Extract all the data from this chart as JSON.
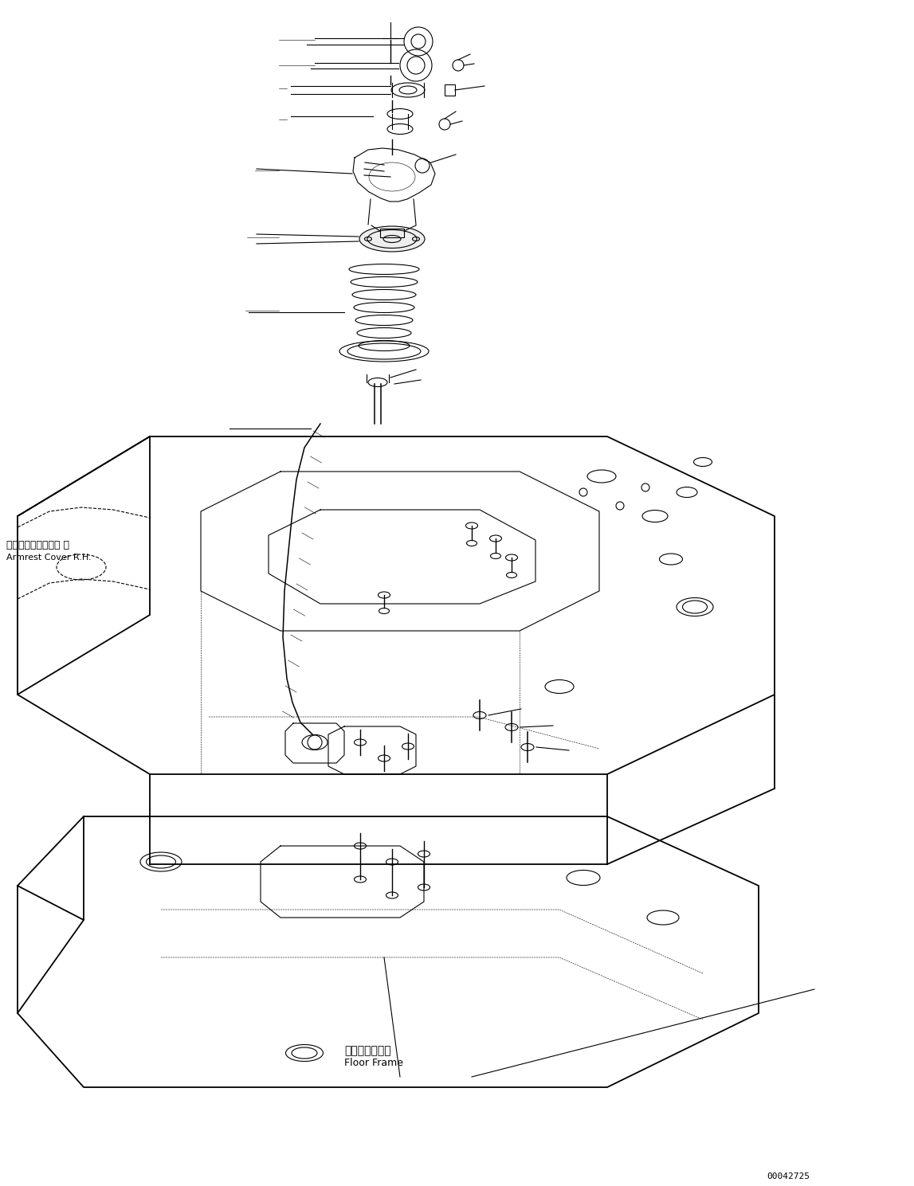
{
  "background_color": "#ffffff",
  "line_color": "#000000",
  "fig_width": 11.47,
  "fig_height": 14.89,
  "dpi": 100,
  "label1_jp": "アームレストカバー 右",
  "label1_en": "Armrest Cover R.H.",
  "label2_jp": "フロアフレーム",
  "label2_en": "Floor Frame",
  "watermark": "00042725"
}
